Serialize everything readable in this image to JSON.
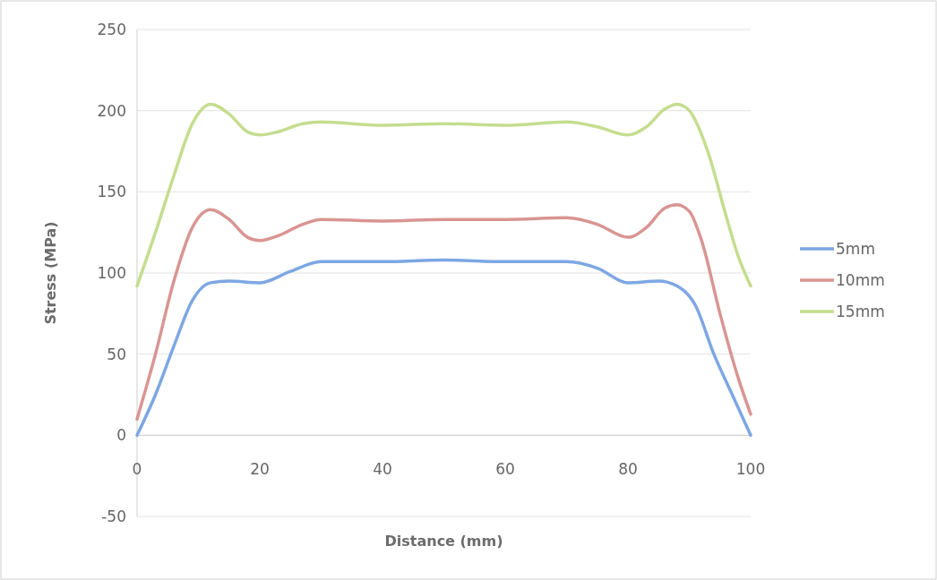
{
  "chart_data": {
    "type": "line",
    "xlabel": "Distance (mm)",
    "ylabel": "Stress (MPa)",
    "xlim": [
      0,
      100
    ],
    "xticks": [
      0,
      20,
      40,
      60,
      80,
      100
    ],
    "ylim": [
      -50,
      250
    ],
    "yticks": [
      -50,
      0,
      50,
      100,
      150,
      200,
      250
    ],
    "grid": "y",
    "legend": "right",
    "marker": "none",
    "line_style": "solid",
    "series": [
      {
        "name": "5mm",
        "color": "#7da7e3",
        "x": [
          0,
          3,
          6,
          9,
          12,
          15,
          20,
          25,
          30,
          40,
          50,
          60,
          70,
          75,
          80,
          85,
          88,
          91,
          94,
          97,
          100
        ],
        "values": [
          0,
          25,
          55,
          83,
          94,
          95,
          94,
          101,
          107,
          107,
          108,
          107,
          107,
          103,
          94,
          95,
          92,
          80,
          50,
          25,
          0
        ]
      },
      {
        "name": "10mm",
        "color": "#d99592",
        "x": [
          0,
          3,
          6,
          9,
          12,
          15,
          18,
          20,
          23,
          27,
          30,
          40,
          50,
          60,
          70,
          75,
          80,
          83,
          86,
          88,
          90,
          92,
          95,
          98,
          100
        ],
        "values": [
          10,
          50,
          95,
          128,
          139,
          133,
          122,
          120,
          123,
          130,
          133,
          132,
          133,
          133,
          134,
          130,
          122,
          128,
          140,
          142,
          138,
          120,
          75,
          35,
          13
        ]
      },
      {
        "name": "15mm",
        "color": "#c5dd8e",
        "x": [
          0,
          3,
          6,
          9,
          12,
          15,
          18,
          20,
          23,
          27,
          30,
          40,
          50,
          60,
          70,
          75,
          80,
          83,
          86,
          88,
          90,
          93,
          96,
          98,
          100
        ],
        "values": [
          92,
          125,
          160,
          192,
          204,
          198,
          187,
          185,
          187,
          192,
          193,
          191,
          192,
          191,
          193,
          190,
          185,
          190,
          201,
          204,
          200,
          175,
          135,
          110,
          92
        ]
      }
    ]
  }
}
